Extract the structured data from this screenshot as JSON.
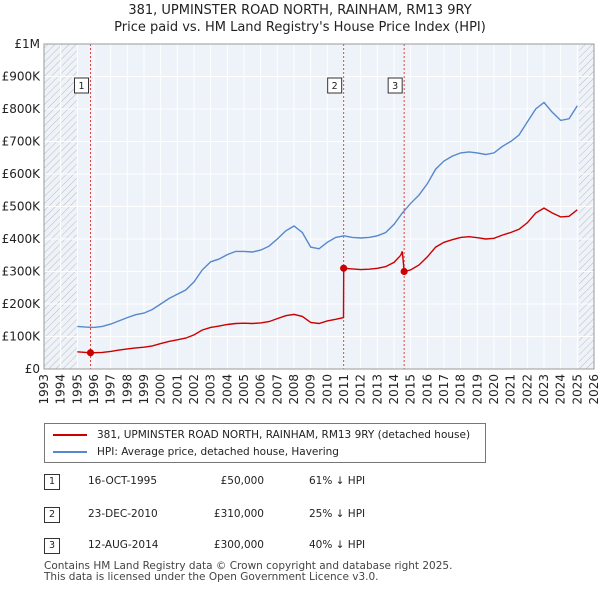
{
  "title_line1": "381, UPMINSTER ROAD NORTH, RAINHAM, RM13 9RY",
  "title_line2": "Price paid vs. HM Land Registry's House Price Index (HPI)",
  "colors": {
    "property": "#cc0000",
    "hpi": "#5588cc",
    "plot_bg": "#eef2f9",
    "hatch": "#bbbbbb",
    "marker_line": "#dd4444"
  },
  "chart_data": {
    "type": "line",
    "title": "381, UPMINSTER ROAD NORTH, RAINHAM, RM13 9RY — Price paid vs. HM Land Registry's House Price Index (HPI)",
    "xlabel": "",
    "ylabel": "",
    "xlim": [
      1993,
      2026
    ],
    "ylim": [
      0,
      1000000
    ],
    "x_ticks": [
      1993,
      1994,
      1995,
      1996,
      1997,
      1998,
      1999,
      2000,
      2001,
      2002,
      2003,
      2004,
      2005,
      2006,
      2007,
      2008,
      2009,
      2010,
      2011,
      2012,
      2013,
      2014,
      2015,
      2016,
      2017,
      2018,
      2019,
      2020,
      2021,
      2022,
      2023,
      2024,
      2025,
      2026
    ],
    "y_ticks": [
      {
        "value": 0,
        "label": "£0"
      },
      {
        "value": 100000,
        "label": "£100K"
      },
      {
        "value": 200000,
        "label": "£200K"
      },
      {
        "value": 300000,
        "label": "£300K"
      },
      {
        "value": 400000,
        "label": "£400K"
      },
      {
        "value": 500000,
        "label": "£500K"
      },
      {
        "value": 600000,
        "label": "£600K"
      },
      {
        "value": 700000,
        "label": "£700K"
      },
      {
        "value": 800000,
        "label": "£800K"
      },
      {
        "value": 900000,
        "label": "£900K"
      },
      {
        "value": 1000000,
        "label": "£1M"
      }
    ],
    "hatched_ranges": [
      [
        1993,
        1995.0
      ],
      [
        2025.1,
        2026
      ]
    ],
    "grid": true,
    "series": [
      {
        "name": "381, UPMINSTER ROAD NORTH, RAINHAM, RM13 9RY (detached house)",
        "color": "#cc0000",
        "points": [
          [
            1995.0,
            53000
          ],
          [
            1995.79,
            50000
          ],
          [
            1996.5,
            51000
          ],
          [
            1997.0,
            54000
          ],
          [
            1997.5,
            58000
          ],
          [
            1998.0,
            62000
          ],
          [
            1998.5,
            65000
          ],
          [
            1999.0,
            67000
          ],
          [
            1999.5,
            71000
          ],
          [
            2000.0,
            78000
          ],
          [
            2000.5,
            85000
          ],
          [
            2001.0,
            90000
          ],
          [
            2001.5,
            95000
          ],
          [
            2002.0,
            105000
          ],
          [
            2002.5,
            120000
          ],
          [
            2003.0,
            128000
          ],
          [
            2003.5,
            132000
          ],
          [
            2004.0,
            137000
          ],
          [
            2004.5,
            140000
          ],
          [
            2005.0,
            141000
          ],
          [
            2005.5,
            140000
          ],
          [
            2006.0,
            142000
          ],
          [
            2006.5,
            146000
          ],
          [
            2007.0,
            155000
          ],
          [
            2007.5,
            164000
          ],
          [
            2008.0,
            168000
          ],
          [
            2008.5,
            162000
          ],
          [
            2009.0,
            143000
          ],
          [
            2009.5,
            140000
          ],
          [
            2010.0,
            148000
          ],
          [
            2010.5,
            153000
          ],
          [
            2010.97,
            158000
          ],
          [
            2010.98,
            310000
          ],
          [
            2011.5,
            308000
          ],
          [
            2012.0,
            306000
          ],
          [
            2012.5,
            307000
          ],
          [
            2013.0,
            310000
          ],
          [
            2013.5,
            315000
          ],
          [
            2014.0,
            328000
          ],
          [
            2014.4,
            350000
          ],
          [
            2014.5,
            362000
          ],
          [
            2014.61,
            300000
          ],
          [
            2015.0,
            305000
          ],
          [
            2015.5,
            320000
          ],
          [
            2016.0,
            345000
          ],
          [
            2016.5,
            375000
          ],
          [
            2017.0,
            390000
          ],
          [
            2017.5,
            398000
          ],
          [
            2018.0,
            405000
          ],
          [
            2018.5,
            407000
          ],
          [
            2019.0,
            404000
          ],
          [
            2019.5,
            400000
          ],
          [
            2020.0,
            402000
          ],
          [
            2020.5,
            412000
          ],
          [
            2021.0,
            420000
          ],
          [
            2021.5,
            430000
          ],
          [
            2022.0,
            450000
          ],
          [
            2022.5,
            480000
          ],
          [
            2023.0,
            495000
          ],
          [
            2023.5,
            480000
          ],
          [
            2024.0,
            468000
          ],
          [
            2024.5,
            470000
          ],
          [
            2025.0,
            490000
          ]
        ]
      },
      {
        "name": "HPI: Average price, detached house, Havering",
        "color": "#5588cc",
        "points": [
          [
            1995.0,
            131000
          ],
          [
            1995.5,
            129000
          ],
          [
            1996.0,
            128000
          ],
          [
            1996.5,
            131000
          ],
          [
            1997.0,
            138000
          ],
          [
            1997.5,
            148000
          ],
          [
            1998.0,
            158000
          ],
          [
            1998.5,
            167000
          ],
          [
            1999.0,
            172000
          ],
          [
            1999.5,
            183000
          ],
          [
            2000.0,
            200000
          ],
          [
            2000.5,
            217000
          ],
          [
            2001.0,
            230000
          ],
          [
            2001.5,
            243000
          ],
          [
            2002.0,
            268000
          ],
          [
            2002.5,
            305000
          ],
          [
            2003.0,
            330000
          ],
          [
            2003.5,
            338000
          ],
          [
            2004.0,
            352000
          ],
          [
            2004.5,
            362000
          ],
          [
            2005.0,
            362000
          ],
          [
            2005.5,
            360000
          ],
          [
            2006.0,
            366000
          ],
          [
            2006.5,
            378000
          ],
          [
            2007.0,
            400000
          ],
          [
            2007.5,
            425000
          ],
          [
            2008.0,
            440000
          ],
          [
            2008.5,
            420000
          ],
          [
            2009.0,
            375000
          ],
          [
            2009.5,
            370000
          ],
          [
            2010.0,
            390000
          ],
          [
            2010.5,
            405000
          ],
          [
            2011.0,
            410000
          ],
          [
            2011.5,
            405000
          ],
          [
            2012.0,
            403000
          ],
          [
            2012.5,
            405000
          ],
          [
            2013.0,
            410000
          ],
          [
            2013.5,
            420000
          ],
          [
            2014.0,
            445000
          ],
          [
            2014.5,
            480000
          ],
          [
            2015.0,
            510000
          ],
          [
            2015.5,
            535000
          ],
          [
            2016.0,
            570000
          ],
          [
            2016.5,
            615000
          ],
          [
            2017.0,
            640000
          ],
          [
            2017.5,
            655000
          ],
          [
            2018.0,
            665000
          ],
          [
            2018.5,
            668000
          ],
          [
            2019.0,
            665000
          ],
          [
            2019.5,
            660000
          ],
          [
            2020.0,
            665000
          ],
          [
            2020.5,
            685000
          ],
          [
            2021.0,
            700000
          ],
          [
            2021.5,
            720000
          ],
          [
            2022.0,
            760000
          ],
          [
            2022.5,
            800000
          ],
          [
            2023.0,
            820000
          ],
          [
            2023.5,
            790000
          ],
          [
            2024.0,
            765000
          ],
          [
            2024.5,
            770000
          ],
          [
            2025.0,
            810000
          ]
        ]
      }
    ],
    "transactions": [
      {
        "num": "1",
        "x": 1995.79,
        "price": 50000,
        "date": "16-OCT-1995",
        "price_label": "£50,000",
        "hpi_label": "61% ↓ HPI"
      },
      {
        "num": "2",
        "x": 2010.98,
        "price": 310000,
        "date": "23-DEC-2010",
        "price_label": "£310,000",
        "hpi_label": "25% ↓ HPI"
      },
      {
        "num": "3",
        "x": 2014.61,
        "price": 300000,
        "date": "12-AUG-2014",
        "price_label": "£300,000",
        "hpi_label": "40% ↓ HPI"
      }
    ]
  },
  "legend": {
    "property_label": "381, UPMINSTER ROAD NORTH, RAINHAM, RM13 9RY (detached house)",
    "hpi_label": "HPI: Average price, detached house, Havering"
  },
  "footer": {
    "line1": "Contains HM Land Registry data © Crown copyright and database right 2025.",
    "line2": "This data is licensed under the Open Government Licence v3.0."
  }
}
